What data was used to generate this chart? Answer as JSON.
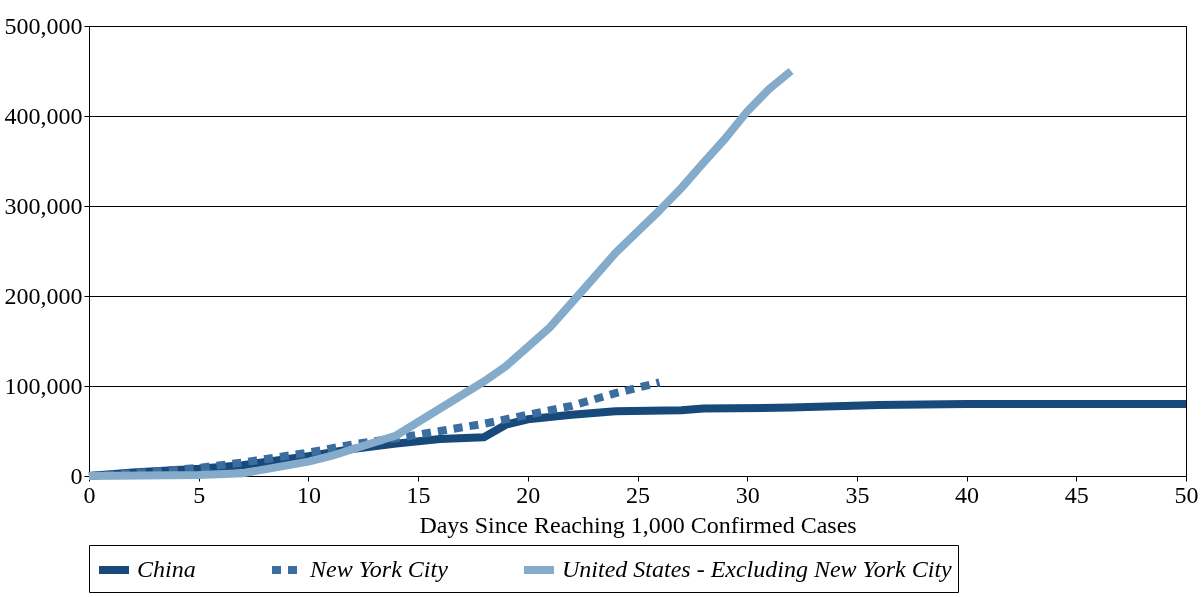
{
  "chart_data": {
    "type": "line",
    "xlabel": "Days Since Reaching 1,000 Confirmed Cases",
    "xlim": [
      0,
      50
    ],
    "xticks": [
      0,
      5,
      10,
      15,
      20,
      25,
      30,
      35,
      40,
      45,
      50
    ],
    "ylim": [
      0,
      500000
    ],
    "yticks": [
      0,
      {
        "value": 100000,
        "label": "100,000"
      },
      {
        "value": 200000,
        "label": "200,000"
      },
      {
        "value": 300000,
        "label": "300,000"
      },
      {
        "value": 400000,
        "label": "400,000"
      },
      {
        "value": 500000,
        "label": "500,000"
      }
    ],
    "grid": "y",
    "legend": "bottom",
    "marker": "none",
    "series": [
      {
        "name": "China",
        "color": "#17497a",
        "line_style": "solid",
        "x": [
          0,
          2,
          5,
          7,
          10,
          12,
          14,
          16,
          18,
          19,
          20,
          22,
          24,
          27,
          28,
          32,
          36,
          40,
          45,
          50
        ],
        "values": [
          0,
          4000,
          8000,
          12000,
          22000,
          30000,
          36000,
          41000,
          43000,
          57000,
          63000,
          68000,
          72000,
          73000,
          75000,
          76000,
          79000,
          80000,
          80000,
          80000
        ]
      },
      {
        "name": "New York City",
        "color": "#3b6e9f",
        "line_style": "dashed",
        "x": [
          0,
          2,
          5,
          7,
          10,
          12,
          14,
          16,
          18,
          20,
          22,
          24,
          26
        ],
        "values": [
          0,
          3000,
          9000,
          15000,
          26000,
          35000,
          42000,
          50000,
          58000,
          68000,
          78000,
          92000,
          104000
        ]
      },
      {
        "name": "United States - Excluding New York City",
        "color": "#85abcb",
        "line_style": "solid",
        "x": [
          0,
          5,
          7,
          10,
          11,
          14,
          16,
          18,
          19,
          21,
          23,
          24,
          26,
          27,
          28,
          29,
          30,
          31,
          32
        ],
        "values": [
          0,
          1000,
          3000,
          16000,
          22000,
          45000,
          75000,
          105000,
          122000,
          165000,
          220000,
          248000,
          295000,
          320000,
          348000,
          375000,
          405000,
          430000,
          450000
        ]
      }
    ]
  }
}
